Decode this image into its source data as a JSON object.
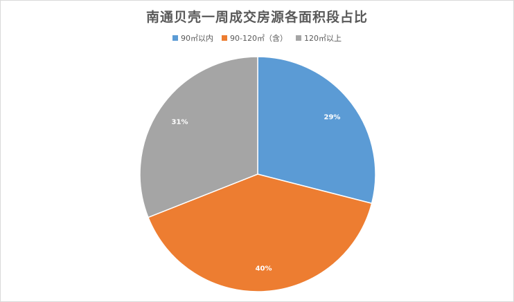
{
  "chart_data": {
    "type": "pie",
    "title": "南通贝壳一周成交房源各面积段占比",
    "categories": [
      "90㎡以内",
      "90-120㎡（含）",
      "120㎡以上"
    ],
    "values": [
      29,
      40,
      31
    ],
    "labels": [
      "29%",
      "40%",
      "31%"
    ],
    "colors": [
      "#5b9bd5",
      "#ed7d31",
      "#a5a5a5"
    ],
    "legend_position": "top"
  }
}
